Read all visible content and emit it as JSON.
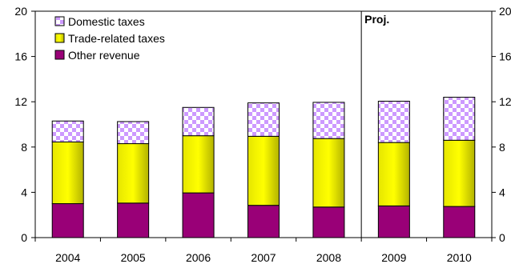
{
  "chart_data": {
    "type": "bar",
    "stacked": true,
    "categories": [
      "2004",
      "2005",
      "2006",
      "2007",
      "2008",
      "2009",
      "2010"
    ],
    "series": [
      {
        "name": "Other revenue",
        "values": [
          3.0,
          3.05,
          3.95,
          2.85,
          2.7,
          2.8,
          2.75
        ],
        "color": "#990077",
        "pattern": "solid"
      },
      {
        "name": "Trade-related taxes",
        "values": [
          5.45,
          5.25,
          5.05,
          6.1,
          6.05,
          5.6,
          5.85
        ],
        "color": "#ffff00",
        "pattern": "gradient"
      },
      {
        "name": "Domestic taxes",
        "values": [
          1.85,
          1.95,
          2.5,
          2.95,
          3.2,
          3.65,
          3.8
        ],
        "color": "#cc99ff",
        "pattern": "checkerboard"
      }
    ],
    "legend_order": [
      "Domestic taxes",
      "Trade-related taxes",
      "Other revenue"
    ],
    "legend_position": "top-left",
    "ylim": [
      0,
      20
    ],
    "yticks": [
      "0",
      "4",
      "8",
      "12",
      "16",
      "20"
    ],
    "right_axis_ticks": [
      "0",
      "4",
      "8",
      "12",
      "16",
      "20"
    ],
    "projection_label": "Proj.",
    "projection_starts_at": "2009",
    "grid": false
  }
}
